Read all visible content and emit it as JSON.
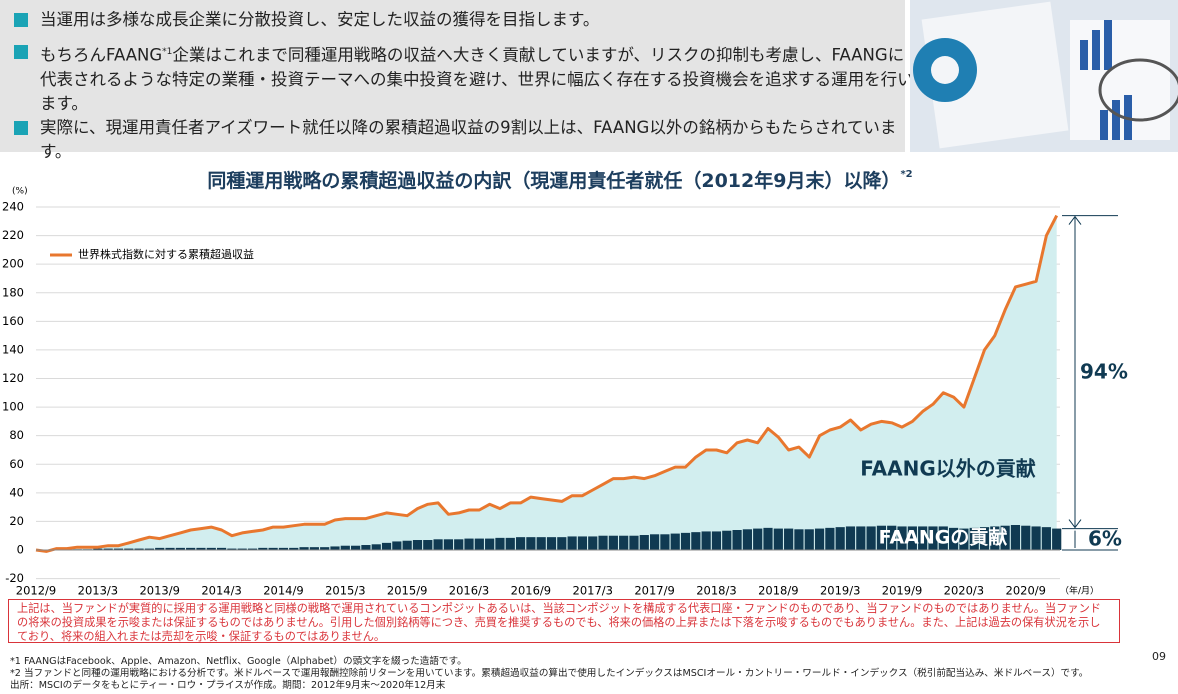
{
  "bullets": [
    {
      "text": "当運用は多様な成長企業に分散投資し、安定した収益の獲得を目指します。"
    },
    {
      "text": "もちろんFAANG",
      "sup": "*1",
      "text_after": "企業はこれまで同種運用戦略の収益へ大きく貢献していますが、リスクの抑制も考慮し、FAANGに代表されるような特定の業種・投資テーマへの集中投資を避け、世界に幅広く存在する投資機会を追求する運用を行います。"
    },
    {
      "text": "実際に、現運用責任者アイズワート就任以降の累積超過収益の9割以上は、FAANG以外の銘柄からもたらされています。"
    }
  ],
  "chart_data": {
    "type": "line",
    "title": "同種運用戦略の累積超過収益の内訳（現運用責任者就任（2012年9月末）以降）",
    "title_note": "*2",
    "y_unit": "(%)",
    "x_unit": "（年/月）",
    "categories": [
      "2012/9",
      null,
      null,
      null,
      null,
      null,
      "2013/3",
      null,
      null,
      null,
      null,
      null,
      "2013/9",
      null,
      null,
      null,
      null,
      null,
      "2014/3",
      null,
      null,
      null,
      null,
      null,
      "2014/9",
      null,
      null,
      null,
      null,
      null,
      "2015/3",
      null,
      null,
      null,
      null,
      null,
      "2015/9",
      null,
      null,
      null,
      null,
      null,
      "2016/3",
      null,
      null,
      null,
      null,
      null,
      "2016/9",
      null,
      null,
      null,
      null,
      null,
      "2017/3",
      null,
      null,
      null,
      null,
      null,
      "2017/9",
      null,
      null,
      null,
      null,
      null,
      "2018/3",
      null,
      null,
      null,
      null,
      null,
      "2018/9",
      null,
      null,
      null,
      null,
      null,
      "2019/3",
      null,
      null,
      null,
      null,
      null,
      "2019/9",
      null,
      null,
      null,
      null,
      null,
      "2020/3",
      null,
      null,
      null,
      null,
      null,
      "2020/9",
      null,
      null,
      null
    ],
    "series": [
      {
        "name": "世界株式指数に対する累積超過収益",
        "color": "#e8772e",
        "fill": "#d2eeef",
        "values": [
          0,
          -1,
          1,
          1,
          2,
          2,
          2,
          3,
          3,
          5,
          7,
          9,
          8,
          10,
          12,
          14,
          15,
          16,
          14,
          10,
          12,
          13,
          14,
          16,
          16,
          17,
          18,
          18,
          18,
          21,
          22,
          22,
          22,
          24,
          26,
          25,
          24,
          29,
          32,
          33,
          25,
          26,
          28,
          28,
          32,
          29,
          33,
          33,
          37,
          36,
          35,
          34,
          38,
          38,
          42,
          46,
          50,
          50,
          51,
          50,
          52,
          55,
          58,
          58,
          65,
          70,
          70,
          68,
          75,
          77,
          75,
          85,
          79,
          70,
          72,
          65,
          80,
          84,
          86,
          91,
          84,
          88,
          90,
          89,
          86,
          90,
          97,
          102,
          110,
          107,
          100,
          120,
          140,
          150,
          168,
          184,
          186,
          188,
          220,
          234
        ]
      },
      {
        "name": "FAANGの貢献",
        "color": "#103a52",
        "type": "bar",
        "values": [
          0,
          0,
          0.5,
          0.5,
          0.5,
          0.5,
          1,
          1,
          1,
          1,
          1,
          1,
          1.5,
          1.5,
          1.5,
          1.5,
          1.5,
          1.5,
          1.5,
          1,
          1,
          1,
          1.5,
          1.5,
          1.5,
          1.5,
          2,
          2,
          2,
          2.5,
          3,
          3,
          3.5,
          4,
          5,
          6,
          6.5,
          7,
          7,
          7.5,
          7.5,
          7.5,
          8,
          8,
          8,
          8.5,
          8.5,
          9,
          9,
          9,
          9,
          9,
          9.5,
          9.5,
          9.5,
          10,
          10,
          10,
          10,
          10.5,
          11,
          11,
          11.5,
          12,
          12.5,
          13,
          13,
          13.5,
          14,
          14.5,
          15,
          15.5,
          15,
          15,
          14.5,
          14.5,
          15,
          15.5,
          16,
          16.5,
          16.5,
          16.5,
          17,
          17,
          16.5,
          16.5,
          16.5,
          16.5,
          16.5,
          15.5,
          15,
          15.5,
          16,
          16.5,
          17,
          17.5,
          17,
          16.5,
          16,
          15
        ]
      }
    ],
    "area_label": "FAANG以外の貢献",
    "share_labels": [
      "94%",
      "6%"
    ],
    "ylim": [
      -20,
      240
    ],
    "yticks": [
      -20,
      0,
      20,
      40,
      60,
      80,
      100,
      120,
      140,
      160,
      180,
      200,
      220,
      240
    ],
    "grid": true,
    "legend": "upper left"
  },
  "notice": "上記は、当ファンドが実質的に採用する運用戦略と同様の戦略で運用されているコンポジットあるいは、当該コンポジットを構成する代表口座・ファンドのものであり、当ファンドのものではありません。当ファンドの将来の投資成果を示唆または保証するものではありません。引用した個別銘柄等につき、売買を推奨するものでも、将来の価格の上昇または下落を示唆するものでもありません。また、上記は過去の保有状況を示しており、将来の組入れまたは売却を示唆・保証するものではありません。",
  "footnotes": [
    "*1 FAANGはFacebook、Apple、Amazon、Netflix、Google（Alphabet）の頭文字を綴った造語です。",
    "*2 当ファンドと同種の運用戦略における分析です。米ドルベースで運用報酬控除前リターンを用いています。累積超過収益の算出で使用したインデックスはMSCIオール・カントリー・ワールド・インデックス（税引前配当込み、米ドルベース）です。",
    "出所：MSCIのデータをもとにティー・ロウ・プライスが作成。期間：2012年9月末～2020年12月末"
  ],
  "page_number": "09"
}
